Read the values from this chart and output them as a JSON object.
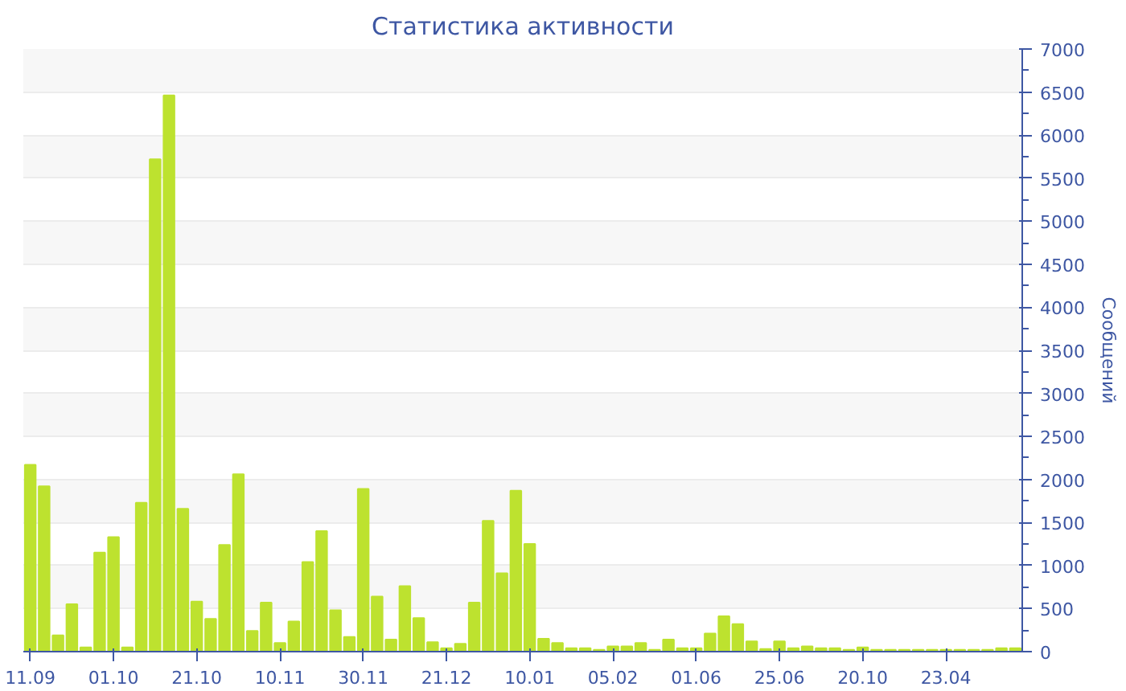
{
  "chart_data": {
    "type": "bar",
    "title": "Статистика активности",
    "ylabel": "Сообщений",
    "categories": [
      "11.09",
      null,
      null,
      null,
      null,
      null,
      "01.10",
      null,
      null,
      null,
      null,
      null,
      "21.10",
      null,
      null,
      null,
      null,
      null,
      "10.11",
      null,
      null,
      null,
      null,
      null,
      "30.11",
      null,
      null,
      null,
      null,
      null,
      "21.12",
      null,
      null,
      null,
      null,
      null,
      "10.01",
      null,
      null,
      null,
      null,
      null,
      "05.02",
      null,
      null,
      null,
      null,
      null,
      "01.06",
      null,
      null,
      null,
      null,
      null,
      "25.06",
      null,
      null,
      null,
      null,
      null,
      "20.10",
      null,
      null,
      null,
      null,
      null,
      "23.04",
      null,
      null,
      null,
      null,
      null
    ],
    "values": [
      2170,
      1920,
      190,
      550,
      50,
      1150,
      1330,
      50,
      1730,
      5720,
      6460,
      1660,
      580,
      380,
      1240,
      2060,
      240,
      570,
      100,
      350,
      1040,
      1400,
      480,
      170,
      1890,
      640,
      140,
      760,
      390,
      110,
      40,
      90,
      570,
      1520,
      910,
      1870,
      1250,
      150,
      100,
      40,
      40,
      20,
      60,
      60,
      100,
      20,
      140,
      40,
      40,
      210,
      410,
      320,
      120,
      30,
      120,
      40,
      60,
      40,
      40,
      20,
      50,
      20,
      20,
      20,
      20,
      20,
      20,
      20,
      20,
      20,
      40,
      40
    ],
    "color": "#bde22f",
    "ylim": [
      0,
      7000
    ],
    "yticks": [
      0,
      500,
      1000,
      1500,
      2000,
      2500,
      3000,
      3500,
      4000,
      4500,
      5000,
      5500,
      6000,
      6500,
      7000
    ],
    "grid": "y"
  }
}
